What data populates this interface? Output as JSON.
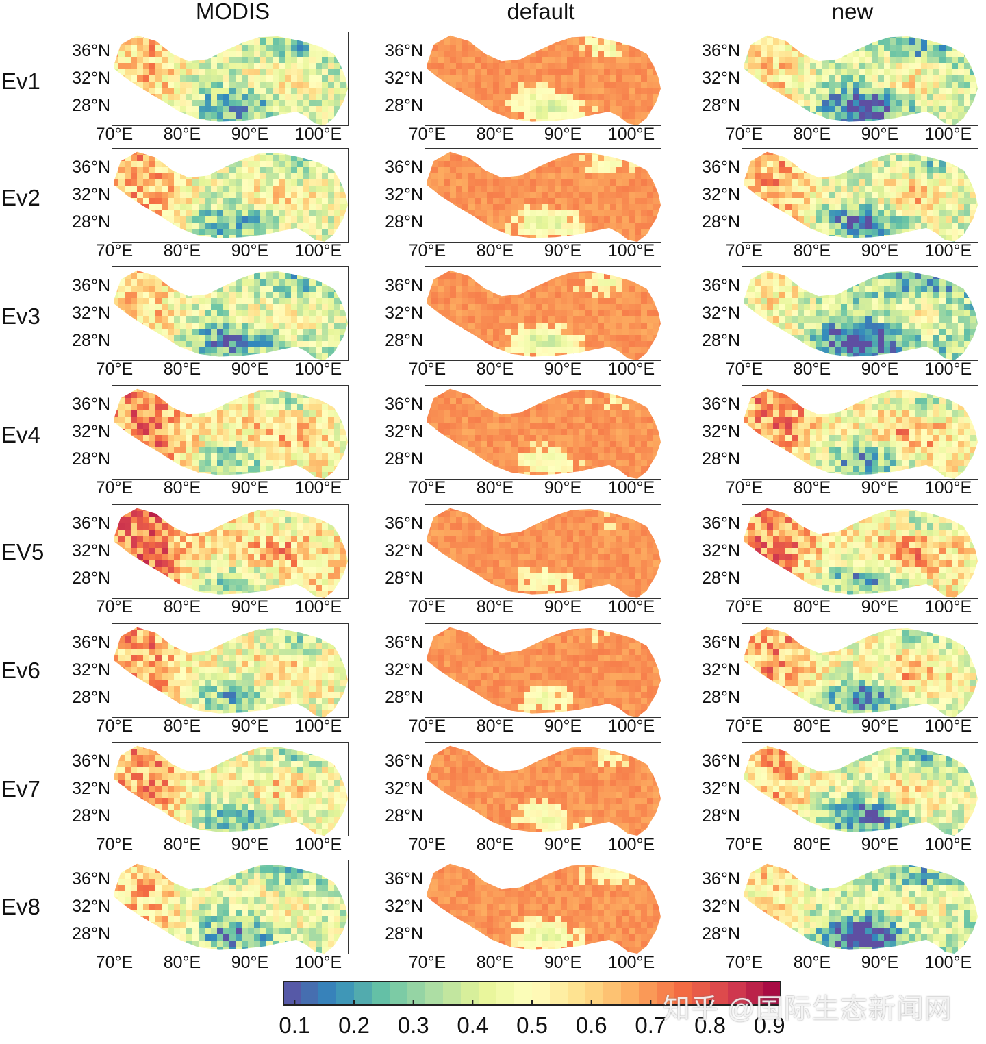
{
  "columns": [
    "MODIS",
    "default",
    "new"
  ],
  "rows": [
    "Ev1",
    "Ev2",
    "Ev3",
    "Ev4",
    "EV5",
    "Ev6",
    "Ev7",
    "Ev8"
  ],
  "lat_ticks": [
    "36°N",
    "32°N",
    "28°N"
  ],
  "lon_ticks": [
    "70°E",
    "80°E",
    "90°E",
    "100°E"
  ],
  "chart_data": {
    "type": "heatmap",
    "description_free": true,
    "xlabel": "",
    "ylabel": "",
    "x_range": [
      70,
      105
    ],
    "y_range": [
      25,
      40
    ],
    "colormap": "Spectral_r",
    "colorbar": {
      "ticks": [
        0.1,
        0.2,
        0.3,
        0.4,
        0.5,
        0.6,
        0.7,
        0.8,
        0.9
      ],
      "range": [
        0.08,
        0.92
      ],
      "colors": [
        "#5e4fa2",
        "#3288bd",
        "#66c2a5",
        "#abdda4",
        "#e6f598",
        "#ffffbf",
        "#fee08b",
        "#fdae61",
        "#f46d43",
        "#d53e4f",
        "#9e0142"
      ]
    },
    "panel_mean_values": {
      "MODIS": [
        0.42,
        0.45,
        0.4,
        0.52,
        0.55,
        0.48,
        0.48,
        0.42
      ],
      "default": [
        0.62,
        0.64,
        0.62,
        0.68,
        0.69,
        0.68,
        0.67,
        0.64
      ],
      "new": [
        0.38,
        0.44,
        0.33,
        0.5,
        0.52,
        0.47,
        0.43,
        0.37
      ]
    }
  },
  "watermark": "知乎 @国际生态新闻网"
}
